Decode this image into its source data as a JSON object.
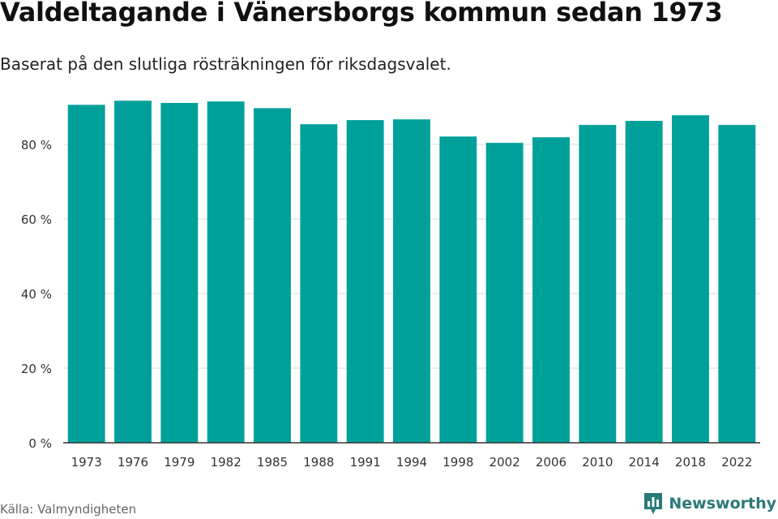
{
  "header": {
    "title": "Valdeltagande i Vänersborgs kommun sedan 1973",
    "subtitle": "Baserat på den slutliga rösträkningen för riksdagsvalet."
  },
  "footer": {
    "source": "Källa: Valmyndigheten",
    "brand_name": "Newsworthy",
    "brand_icon": "bar-chart-icon"
  },
  "colors": {
    "bar": "#00a09a",
    "grid": "#dddddd",
    "axis": "#333333",
    "brand": "#2a7a78"
  },
  "chart_data": {
    "type": "bar",
    "categories": [
      "1973",
      "1976",
      "1979",
      "1982",
      "1985",
      "1988",
      "1991",
      "1994",
      "1998",
      "2002",
      "2006",
      "2010",
      "2014",
      "2018",
      "2022"
    ],
    "values": [
      90.6,
      91.7,
      91.1,
      91.5,
      89.7,
      85.4,
      86.5,
      86.7,
      82.1,
      80.4,
      81.9,
      85.2,
      86.3,
      87.8,
      85.2
    ],
    "yticks": [
      0,
      20,
      40,
      60,
      80
    ],
    "ytick_labels": [
      "0 %",
      "20 %",
      "40 %",
      "60 %",
      "80 %"
    ],
    "ylim": [
      0,
      100
    ],
    "grid": true,
    "legend": "none"
  }
}
